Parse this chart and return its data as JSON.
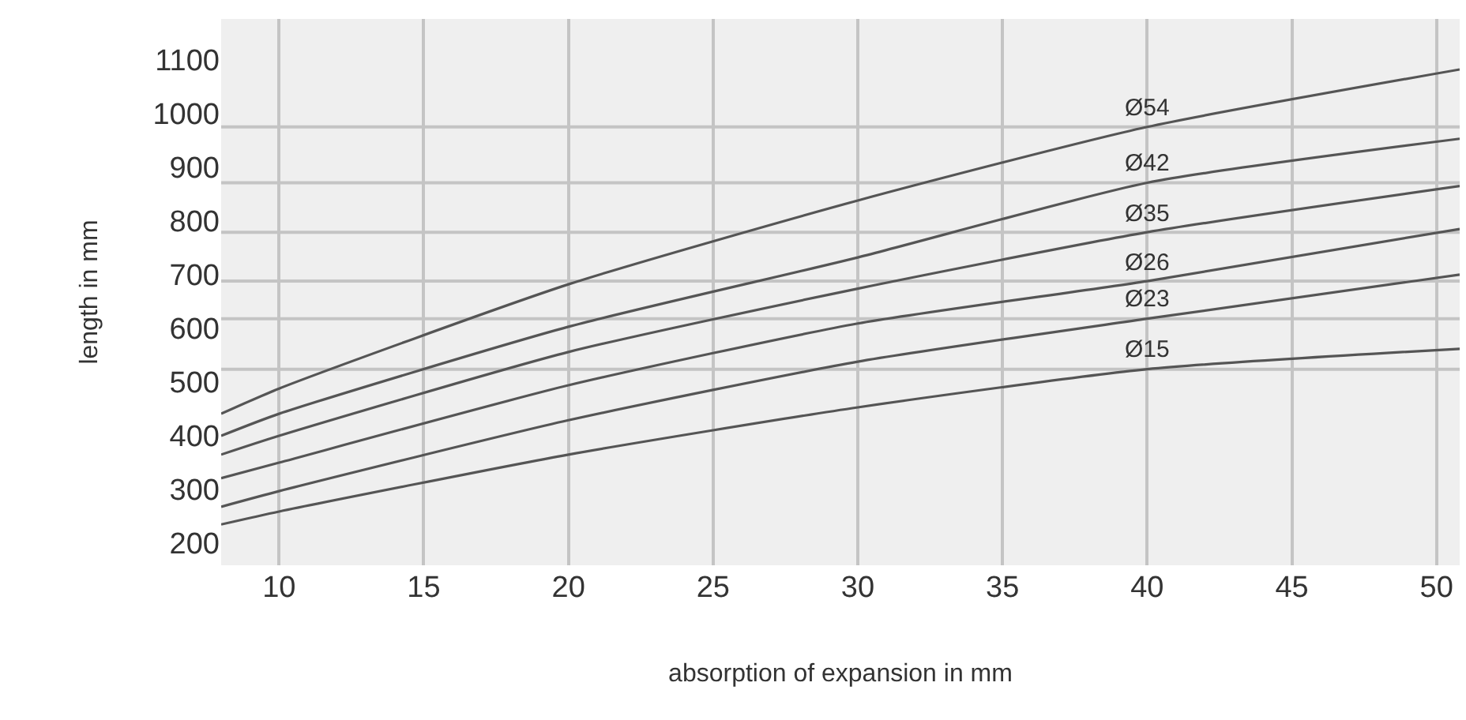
{
  "chart_data": {
    "type": "line",
    "xlabel": "absorption of expansion in mm",
    "ylabel": "length in mm",
    "x": [
      8,
      10,
      20,
      30,
      40,
      50.8
    ],
    "series": [
      {
        "name": "Ø54",
        "color": "#555555",
        "values": [
          441,
          488,
          682,
          838,
          975,
          1082
        ]
      },
      {
        "name": "Ø42",
        "color": "#555555",
        "values": [
          400,
          441,
          603,
          732,
          871,
          953
        ]
      },
      {
        "name": "Ø35",
        "color": "#555555",
        "values": [
          365,
          400,
          556,
          674,
          779,
          865
        ]
      },
      {
        "name": "Ø26",
        "color": "#555555",
        "values": [
          321,
          350,
          494,
          609,
          688,
          785
        ]
      },
      {
        "name": "Ø23",
        "color": "#555555",
        "values": [
          268,
          297,
          429,
          538,
          618,
          700
        ]
      },
      {
        "name": "Ø15",
        "color": "#555555",
        "values": [
          235,
          259,
          365,
          453,
          524,
          562
        ]
      }
    ],
    "ref_lines": [
      {
        "axis": "y",
        "value": 975,
        "color": "#c4c4c4"
      },
      {
        "axis": "y",
        "value": 871,
        "color": "#c4c4c4"
      },
      {
        "axis": "y",
        "value": 779,
        "color": "#c4c4c4"
      },
      {
        "axis": "y",
        "value": 688,
        "color": "#c4c4c4"
      },
      {
        "axis": "y",
        "value": 618,
        "color": "#c4c4c4"
      },
      {
        "axis": "y",
        "value": 524,
        "color": "#c4c4c4"
      }
    ],
    "xlim": [
      8,
      50.8
    ],
    "ylim": [
      159,
      1176
    ],
    "xticks": [
      10,
      15,
      20,
      25,
      30,
      35,
      40,
      45,
      50
    ],
    "yticks": [
      200,
      300,
      400,
      500,
      600,
      700,
      800,
      900,
      1000,
      1100
    ],
    "grid": "x",
    "legend": false,
    "marker": "none",
    "line_style": "solid"
  }
}
